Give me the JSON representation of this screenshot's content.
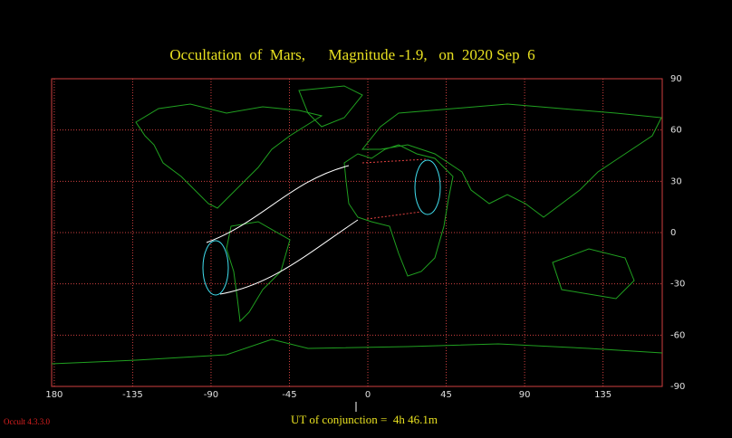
{
  "title": "Occultation  of  Mars,      Magnitude -1.9,   on  2020 Sep  6",
  "map": {
    "xlim": [
      -181.5,
      169
    ],
    "ylim": [
      -90,
      90
    ],
    "xticks": [
      {
        "value": -180,
        "label": "180"
      },
      -135,
      -90,
      -45,
      0,
      45,
      90,
      135
    ],
    "yticks": [
      90,
      60,
      30,
      0,
      -30,
      -60,
      -90
    ]
  },
  "footer": {
    "conjunction": "UT of conjunction =  4h 46.1m",
    "version": "Occult 4.3.3.0"
  }
}
